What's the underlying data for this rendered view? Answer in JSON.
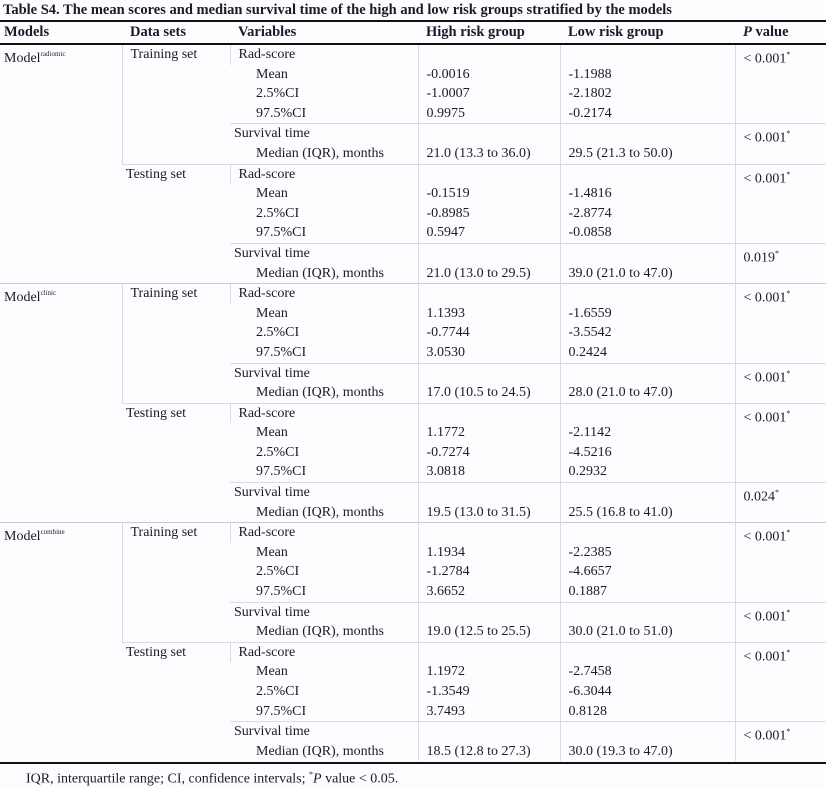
{
  "title": "Table S4. The mean scores and median survival time of the high and low risk groups stratified by the models",
  "headers": {
    "models": "Models",
    "data_sets": "Data sets",
    "variables": "Variables",
    "high": "High risk group",
    "low": "Low risk group",
    "p_italic": "P",
    "p_rest": " value"
  },
  "labels": {
    "rad": "Rad-score",
    "mean": "Mean",
    "ci25": "2.5%CI",
    "ci975": "97.5%CI",
    "surv": "Survival time",
    "median": "Median (IQR), months",
    "star": "*"
  },
  "models": [
    {
      "name": "Model",
      "sup": "radiomic",
      "sets": [
        {
          "name": "Training set",
          "rad_p": "< 0.001",
          "high": [
            "-0.0016",
            "-1.0007",
            "0.9975"
          ],
          "low": [
            "-1.1988",
            "-2.1802",
            "-0.2174"
          ],
          "surv_p": "< 0.001",
          "surv_high": "21.0 (13.3 to 36.0)",
          "surv_low": "29.5 (21.3 to 50.0)"
        },
        {
          "name": "Testing set",
          "rad_p": "< 0.001",
          "high": [
            "-0.1519",
            "-0.8985",
            "0.5947"
          ],
          "low": [
            "-1.4816",
            "-2.8774",
            "-0.0858"
          ],
          "surv_p": "0.019",
          "surv_high": "21.0 (13.0 to 29.5)",
          "surv_low": "39.0 (21.0 to 47.0)"
        }
      ]
    },
    {
      "name": "Model",
      "sup": "clinic",
      "sets": [
        {
          "name": "Training set",
          "rad_p": "< 0.001",
          "high": [
            "1.1393",
            "-0.7744",
            "3.0530"
          ],
          "low": [
            "-1.6559",
            "-3.5542",
            "0.2424"
          ],
          "surv_p": "< 0.001",
          "surv_high": "17.0 (10.5 to 24.5)",
          "surv_low": "28.0 (21.0 to 47.0)"
        },
        {
          "name": "Testing set",
          "rad_p": "< 0.001",
          "high": [
            "1.1772",
            "-0.7274",
            "3.0818"
          ],
          "low": [
            "-2.1142",
            "-4.5216",
            "0.2932"
          ],
          "surv_p": "0.024",
          "surv_high": "19.5 (13.0 to 31.5)",
          "surv_low": "25.5 (16.8 to 41.0)"
        }
      ]
    },
    {
      "name": "Model",
      "sup": "combine",
      "sets": [
        {
          "name": "Training set",
          "rad_p": "< 0.001",
          "high": [
            "1.1934",
            "-1.2784",
            "3.6652"
          ],
          "low": [
            "-2.2385",
            "-4.6657",
            "0.1887"
          ],
          "surv_p": "< 0.001",
          "surv_high": "19.0 (12.5 to 25.5)",
          "surv_low": "30.0 (21.0 to 51.0)"
        },
        {
          "name": "Testing set",
          "rad_p": "< 0.001",
          "high": [
            "1.1972",
            "-1.3549",
            "3.7493"
          ],
          "low": [
            "-2.7458",
            "-6.3044",
            "0.8128"
          ],
          "surv_p": "< 0.001",
          "surv_high": "18.5 (12.8 to 27.3)",
          "surv_low": "30.0 (19.3 to 47.0)"
        }
      ]
    }
  ],
  "footnote": {
    "pre": "IQR, interquartile range; CI, confidence intervals; ",
    "star": "*",
    "p": "P",
    "post": " value < 0.05."
  }
}
